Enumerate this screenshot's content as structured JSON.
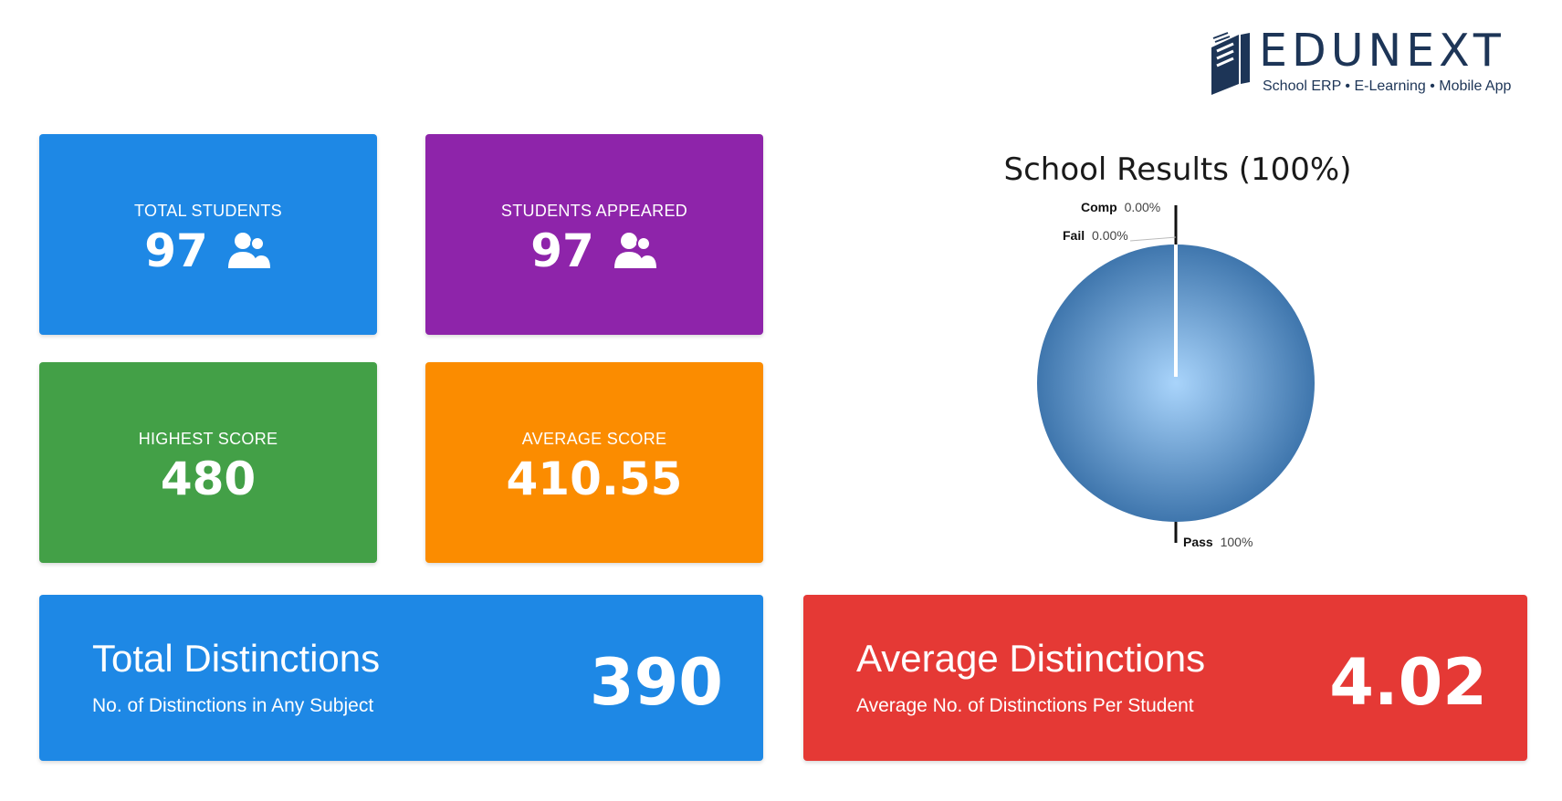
{
  "brand": {
    "name": "EDUNEXT",
    "tagline": "School ERP • E-Learning • Mobile App"
  },
  "stats": {
    "total_students": {
      "label": "TOTAL STUDENTS",
      "value": "97",
      "icon": "users-icon",
      "color": "#1e88e5"
    },
    "students_appeared": {
      "label": "STUDENTS APPEARED",
      "value": "97",
      "icon": "users-icon",
      "color": "#8e24aa"
    },
    "highest_score": {
      "label": "HIGHEST SCORE",
      "value": "480",
      "color": "#43a047"
    },
    "average_score": {
      "label": "AVERAGE SCORE",
      "value": "410.55",
      "color": "#fb8c00"
    }
  },
  "distinctions": {
    "total": {
      "title": "Total Distinctions",
      "subtitle": "No. of Distinctions in Any Subject",
      "value": "390",
      "color": "#1e88e5"
    },
    "average": {
      "title": "Average Distinctions",
      "subtitle": "Average No. of Distinctions Per Student",
      "value": "4.02",
      "color": "#e53935"
    }
  },
  "chart_data": {
    "type": "pie",
    "title": "School Results (100%)",
    "slices": [
      {
        "name": "Pass",
        "value": 100,
        "label": "100%"
      },
      {
        "name": "Fail",
        "value": 0,
        "label": "0.00%"
      },
      {
        "name": "Comp",
        "value": 0,
        "label": "0.00%"
      }
    ],
    "colors": {
      "pass_center": "#a9d4fb",
      "pass_edge": "#3f76ad"
    }
  }
}
